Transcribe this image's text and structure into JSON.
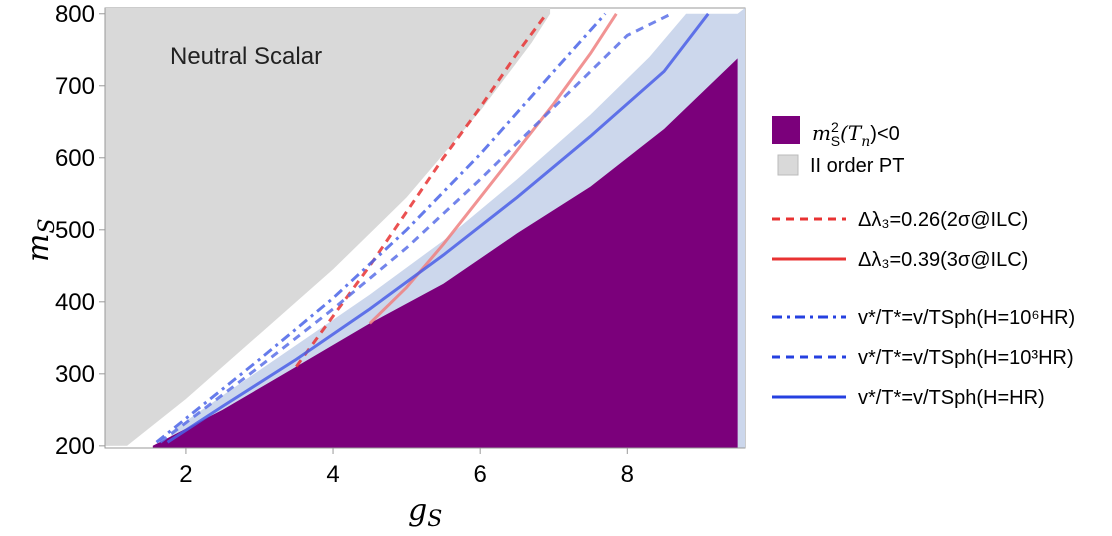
{
  "chart_data": {
    "type": "region-line",
    "title": "",
    "xlabel": "g",
    "xlabel_sub": "S",
    "ylabel": "m",
    "ylabel_sub": "S",
    "xlim": [
      0.9,
      9.6
    ],
    "ylim": [
      197,
      808
    ],
    "x_ticks": [
      2,
      4,
      6,
      8
    ],
    "y_ticks": [
      200,
      300,
      400,
      500,
      600,
      700,
      800
    ],
    "annotation": "Neutral Scalar",
    "regions": [
      {
        "name": "second-order-pt",
        "color": "#d9d9d9",
        "upper": [
          [
            1.0,
            800
          ],
          [
            6.2,
            800
          ]
        ],
        "boundary": [
          [
            1.2,
            200
          ],
          [
            2.0,
            265
          ],
          [
            3.0,
            355
          ],
          [
            4.0,
            445
          ],
          [
            5.0,
            545
          ],
          [
            6.0,
            665
          ],
          [
            6.7,
            760
          ],
          [
            6.95,
            800
          ]
        ]
      },
      {
        "name": "light-blue-band",
        "color": "#ccd7ec",
        "upper": [
          [
            1.8,
            220
          ],
          [
            2.5,
            270
          ],
          [
            3.5,
            340
          ],
          [
            4.5,
            410
          ],
          [
            5.5,
            485
          ],
          [
            6.5,
            570
          ],
          [
            7.5,
            660
          ],
          [
            8.3,
            740
          ],
          [
            8.8,
            800
          ],
          [
            9.5,
            800
          ]
        ]
      },
      {
        "name": "negative-mass",
        "color": "#7b007b",
        "upper": [
          [
            1.55,
            200
          ],
          [
            2.5,
            250
          ],
          [
            3.5,
            310
          ],
          [
            4.5,
            370
          ],
          [
            5.5,
            425
          ],
          [
            6.5,
            495
          ],
          [
            7.5,
            560
          ],
          [
            8.5,
            640
          ],
          [
            9.5,
            738
          ]
        ]
      }
    ],
    "series": [
      {
        "name": "delta-lambda3-0.26",
        "color": "#e83232",
        "dash": "8,6",
        "x": [
          3.5,
          4.0,
          4.5,
          5.0,
          5.5,
          6.0,
          6.5,
          6.9
        ],
        "y": [
          310,
          380,
          450,
          525,
          600,
          670,
          745,
          800
        ]
      },
      {
        "name": "delta-lambda3-0.39",
        "color": "#ef8080",
        "dash": "",
        "x": [
          4.5,
          5.0,
          5.5,
          6.0,
          6.5,
          7.0,
          7.5,
          7.85
        ],
        "y": [
          370,
          420,
          480,
          545,
          610,
          675,
          745,
          800
        ]
      },
      {
        "name": "ratio-H-1e6",
        "color": "#4a64e8",
        "dash": "10,5,3,5",
        "x": [
          1.6,
          2.0,
          3.0,
          4.0,
          5.0,
          6.0,
          7.0,
          7.7
        ],
        "y": [
          205,
          238,
          320,
          405,
          500,
          605,
          720,
          800
        ]
      },
      {
        "name": "ratio-H-1e3",
        "color": "#5a70e8",
        "dash": "8,6",
        "x": [
          1.65,
          2.0,
          3.0,
          4.0,
          5.0,
          6.0,
          7.0,
          8.0,
          8.6
        ],
        "y": [
          205,
          232,
          310,
          390,
          475,
          570,
          670,
          770,
          800
        ]
      },
      {
        "name": "ratio-H-HR",
        "color": "#4a5fe8",
        "dash": "",
        "x": [
          1.75,
          2.5,
          3.5,
          4.5,
          5.5,
          6.5,
          7.5,
          8.5,
          9.1
        ],
        "y": [
          205,
          255,
          320,
          390,
          465,
          545,
          630,
          720,
          800
        ]
      }
    ],
    "legend": {
      "position": "right",
      "entries": [
        {
          "kind": "swatch",
          "color": "#7b007b",
          "label_main": "m",
          "label_sup": "2",
          "label_sub": "S",
          "label_arg": "(T",
          "label_arg_sub": "n",
          "label_rest": ")<0"
        },
        {
          "kind": "swatch",
          "color": "#d9d9d9",
          "label_text": "II order PT"
        },
        {
          "kind": "line",
          "color": "#e83232",
          "dash": "8,6",
          "label_text": "Δλ₃=0.26(2σ@ILC)"
        },
        {
          "kind": "line",
          "color": "#e83232",
          "dash": "",
          "label_text": "Δλ₃=0.39(3σ@ILC)"
        },
        {
          "kind": "line",
          "color": "#2540e0",
          "dash": "10,5,3,5",
          "label_text": "v*/T*=v/TSph(H=10⁶HR)"
        },
        {
          "kind": "line",
          "color": "#2540e0",
          "dash": "8,6",
          "label_text": "v*/T*=v/TSph(H=10³HR)"
        },
        {
          "kind": "line",
          "color": "#2540e0",
          "dash": "",
          "label_text": "v*/T*=v/TSph(H=HR)"
        }
      ]
    }
  }
}
